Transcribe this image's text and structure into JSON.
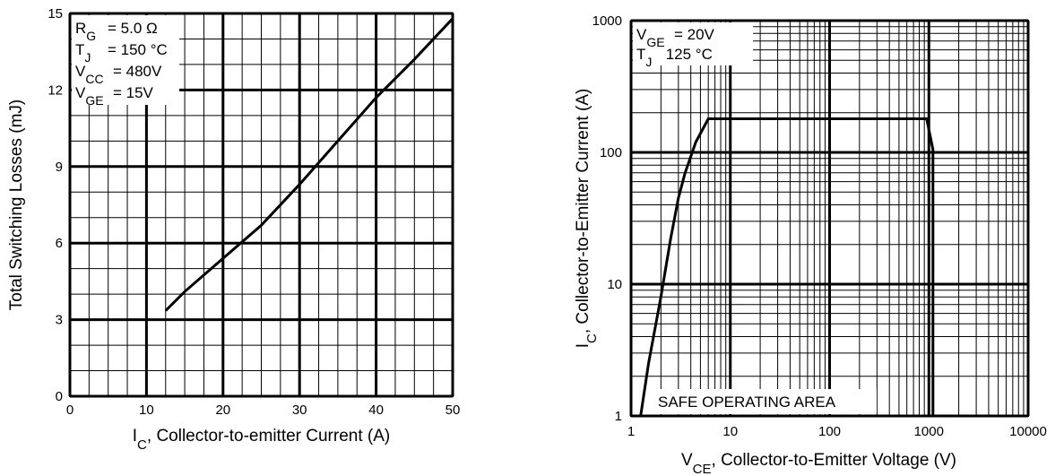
{
  "chart_data": [
    {
      "type": "line",
      "xlabel_main": "I",
      "xlabel_sub": "C",
      "xlabel_rest": ", Collector-to-emitter Current (A)",
      "ylabel": "Total Switching Losses (mJ)",
      "xlim": [
        0,
        50
      ],
      "ylim": [
        0,
        15
      ],
      "x_ticks": [
        "0",
        "10",
        "20",
        "30",
        "40",
        "50"
      ],
      "y_ticks": [
        "0",
        "3",
        "6",
        "9",
        "12",
        "15"
      ],
      "grid": true,
      "legend_position": "top-left",
      "conditions": [
        {
          "main": "R",
          "sub": "G",
          "value": "= 5.0 Ω"
        },
        {
          "main": "T",
          "sub": "J",
          "value": "= 150 °C"
        },
        {
          "main": "V",
          "sub": "CC",
          "value": "= 480V"
        },
        {
          "main": "V",
          "sub": "GE",
          "value": "= 15V"
        }
      ],
      "series": [
        {
          "x": [
            12.5,
            15,
            20,
            25,
            30,
            35,
            40,
            45,
            50
          ],
          "y": [
            3.35,
            4.1,
            5.4,
            6.7,
            8.3,
            10.0,
            11.7,
            13.2,
            14.8
          ]
        }
      ]
    },
    {
      "type": "line",
      "title_box": "SAFE OPERATING AREA",
      "xlabel_main": "V",
      "xlabel_sub": "CE",
      "xlabel_rest": ", Collector-to-Emitter Voltage (V)",
      "ylabel_main": "I",
      "ylabel_sub": "C",
      "ylabel_rest": ",  Collector-to-Emitter Current (A)",
      "xscale": "log",
      "yscale": "log",
      "xlim": [
        1,
        10000
      ],
      "ylim": [
        1,
        1000
      ],
      "x_ticks": [
        "1",
        "10",
        "100",
        "1000",
        "10000"
      ],
      "y_ticks": [
        "1",
        "10",
        "100",
        "1000"
      ],
      "grid": true,
      "legend_position": "top-left",
      "conditions": [
        {
          "main": "V",
          "sub": "GE",
          "value": "= 20V"
        },
        {
          "main": "T",
          "sub": "J",
          "value": "  125 °C"
        }
      ],
      "series": [
        {
          "x": [
            1.25,
            1.5,
            2.0,
            2.5,
            3.0,
            3.5,
            4.5,
            6.0,
            950,
            1100,
            1100
          ],
          "y": [
            1,
            2.5,
            8,
            22,
            45,
            70,
            120,
            180,
            180,
            105,
            1
          ]
        }
      ]
    }
  ]
}
